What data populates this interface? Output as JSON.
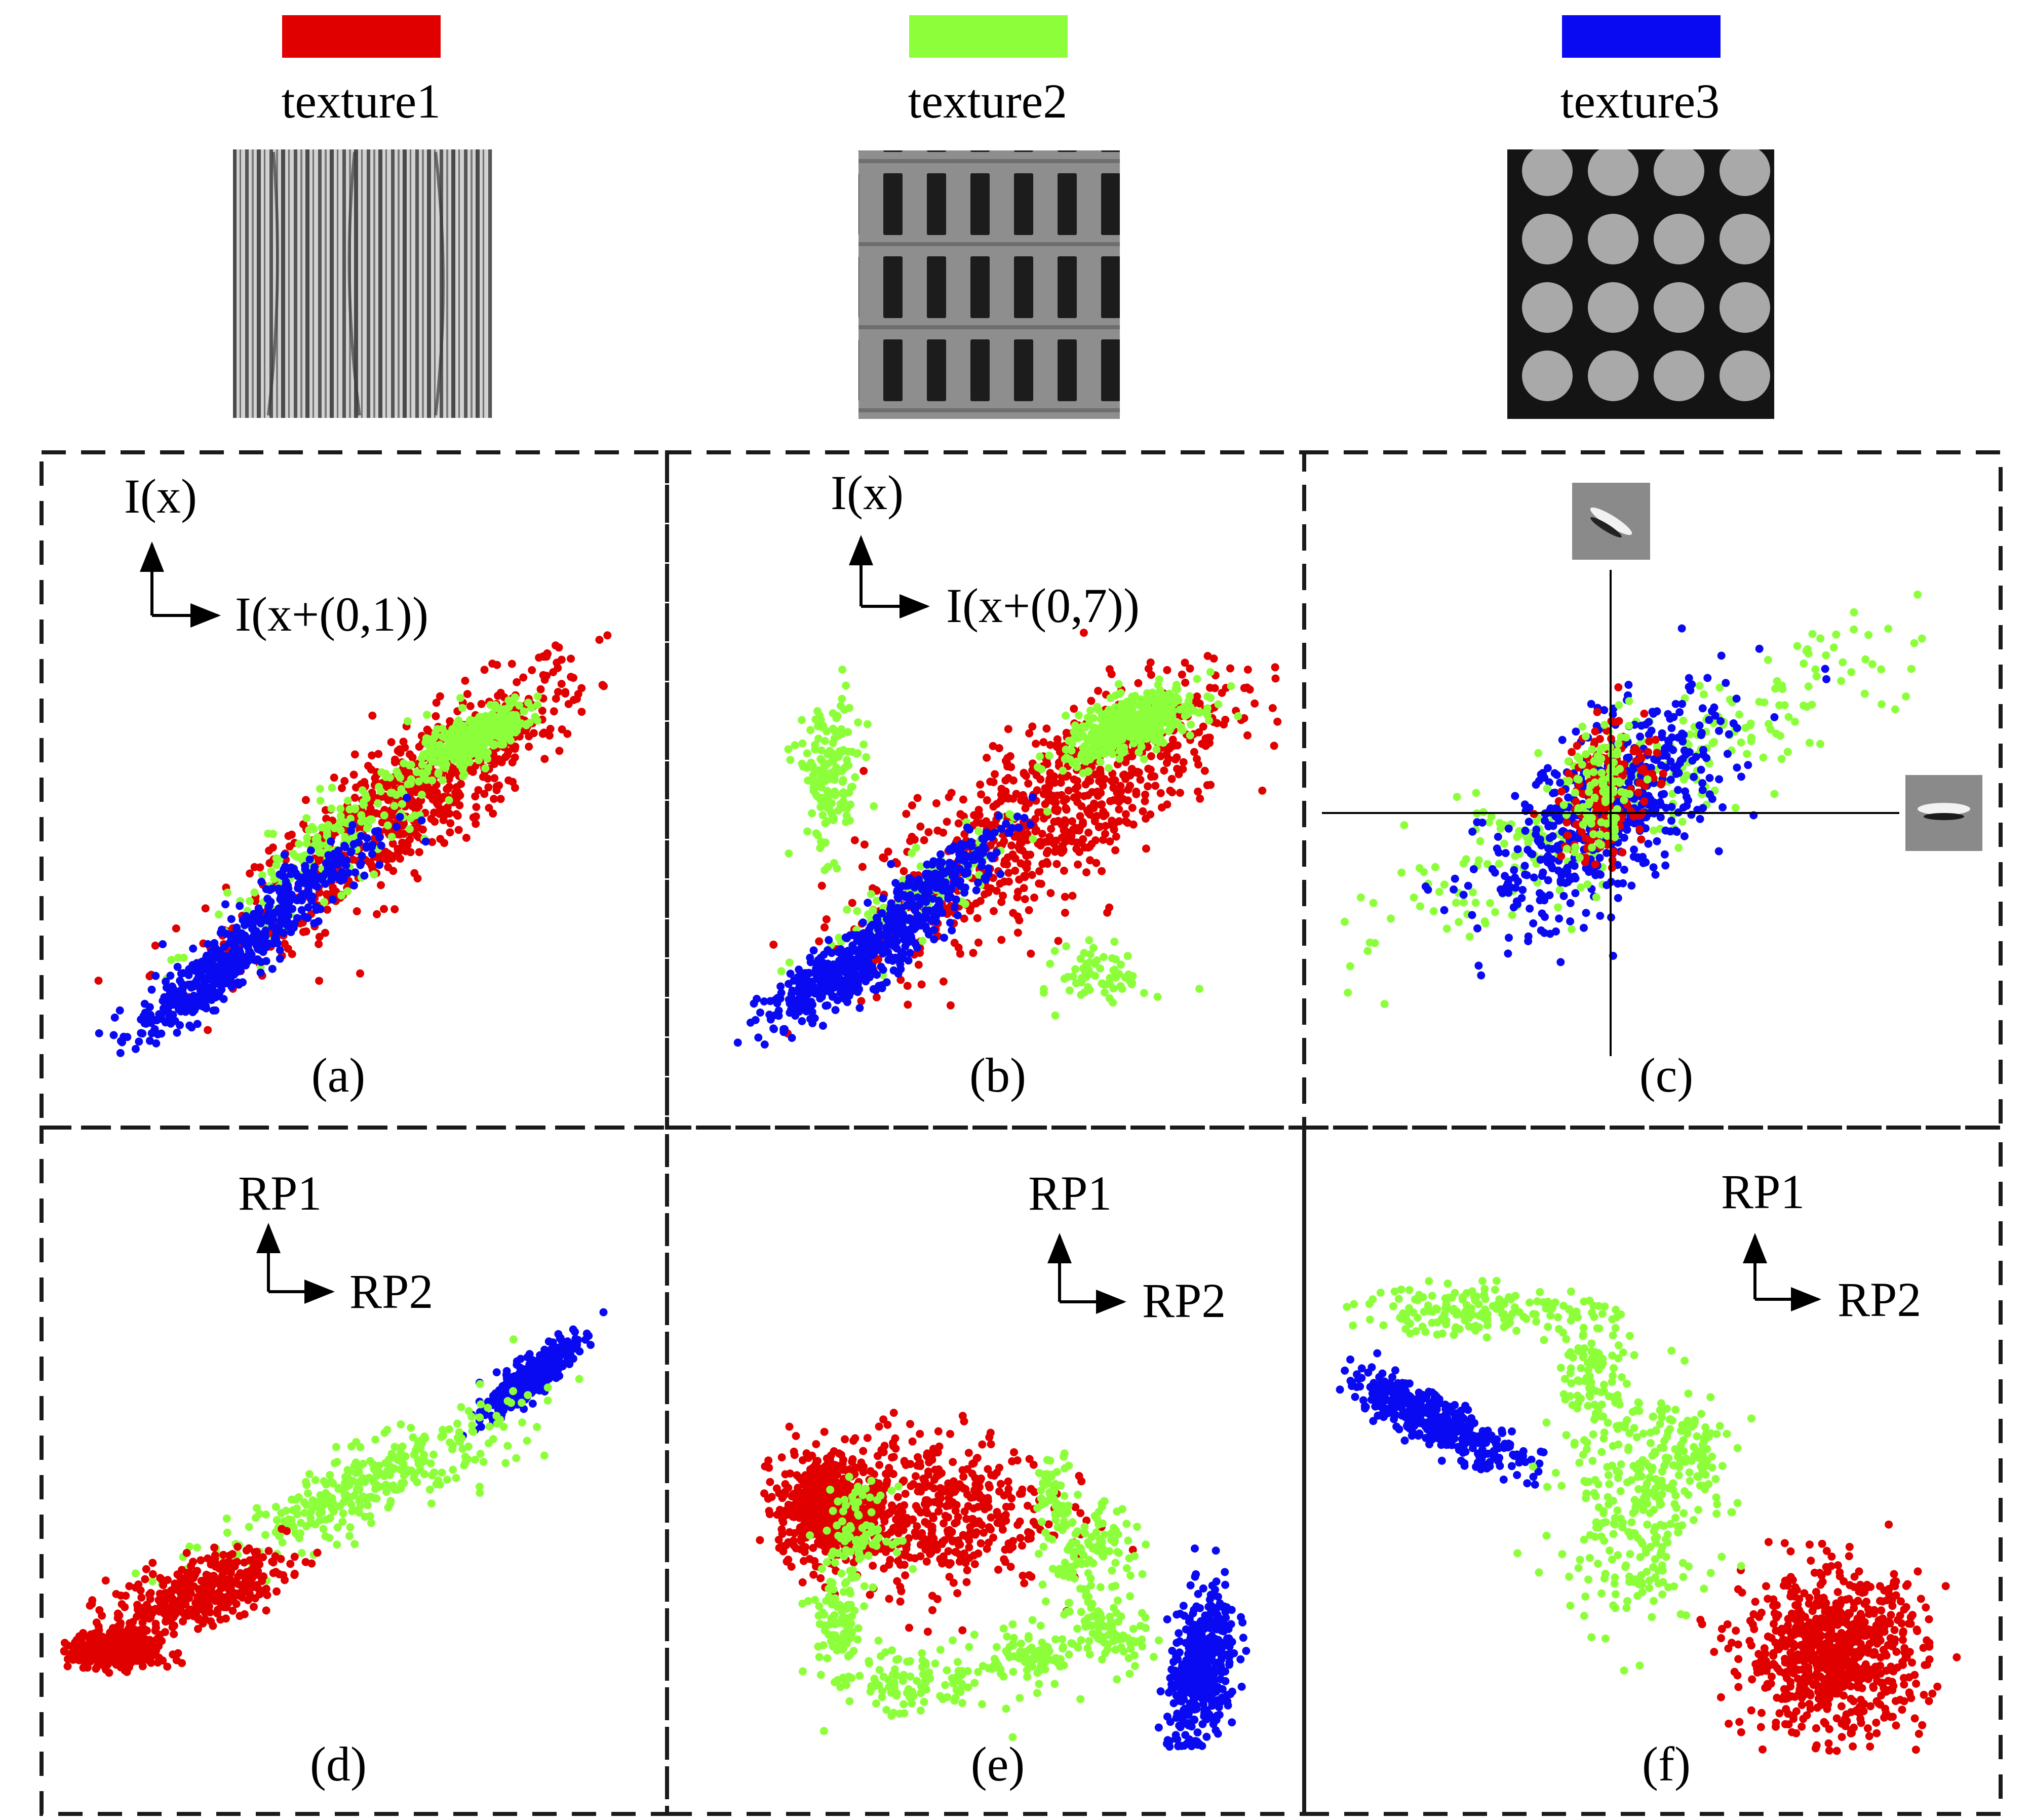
{
  "legend": [
    {
      "label": "texture1",
      "color": "#e00000",
      "icon": "stripe-texture-swatch"
    },
    {
      "label": "texture2",
      "color": "#8cff3a",
      "icon": "window-grid-texture-swatch"
    },
    {
      "label": "texture3",
      "color": "#0a0af2",
      "icon": "dot-lattice-texture-swatch"
    }
  ],
  "colors": {
    "texture1": "#e00000",
    "texture2": "#8cff3a",
    "texture3": "#0a0af2",
    "frame": "#1a1a1a"
  },
  "panels": [
    {
      "id": "a",
      "caption": "(a)",
      "y_axis_label": "I(x)",
      "x_axis_label": "I(x+(0,1))"
    },
    {
      "id": "b",
      "caption": "(b)",
      "y_axis_label": "I(x)",
      "x_axis_label": "I(x+(0,7))"
    },
    {
      "id": "c",
      "caption": "(c)",
      "y_axis_icon": "oblique-gabor-filter-icon",
      "x_axis_icon": "horizontal-gabor-filter-icon"
    },
    {
      "id": "d",
      "caption": "(d)",
      "y_axis_label": "RP1",
      "x_axis_label": "RP2"
    },
    {
      "id": "e",
      "caption": "(e)",
      "y_axis_label": "RP1",
      "x_axis_label": "RP2"
    },
    {
      "id": "f",
      "caption": "(f)",
      "y_axis_label": "RP1",
      "x_axis_label": "RP2"
    }
  ],
  "chart_data": [
    {
      "panel": "a",
      "type": "scatter",
      "clusters": [
        {
          "series": "texture1",
          "cx": 0.62,
          "cy": 0.6,
          "sx": 0.17,
          "sy": 0.17,
          "rho": 0.88,
          "n": 750
        },
        {
          "series": "texture2",
          "cx": 0.74,
          "cy": 0.75,
          "sx": 0.045,
          "sy": 0.035,
          "rho": 0.7,
          "n": 350
        },
        {
          "series": "texture2",
          "cx": 0.5,
          "cy": 0.52,
          "sx": 0.13,
          "sy": 0.13,
          "rho": 0.9,
          "n": 220
        },
        {
          "series": "texture3",
          "cx": 0.24,
          "cy": 0.18,
          "sx": 0.07,
          "sy": 0.07,
          "rho": 0.85,
          "n": 380
        },
        {
          "series": "texture3",
          "cx": 0.42,
          "cy": 0.4,
          "sx": 0.08,
          "sy": 0.08,
          "rho": 0.85,
          "n": 200
        }
      ]
    },
    {
      "panel": "b",
      "type": "scatter",
      "clusters": [
        {
          "series": "texture1",
          "cx": 0.58,
          "cy": 0.58,
          "sx": 0.17,
          "sy": 0.17,
          "rho": 0.8,
          "n": 800
        },
        {
          "series": "texture2",
          "cx": 0.73,
          "cy": 0.78,
          "sx": 0.06,
          "sy": 0.04,
          "rho": 0.6,
          "n": 420
        },
        {
          "series": "texture2",
          "cx": 0.18,
          "cy": 0.66,
          "sx": 0.03,
          "sy": 0.09,
          "rho": 0.0,
          "n": 160
        },
        {
          "series": "texture2",
          "cx": 0.68,
          "cy": 0.2,
          "sx": 0.04,
          "sy": 0.035,
          "rho": 0.0,
          "n": 70
        },
        {
          "series": "texture2",
          "cx": 0.32,
          "cy": 0.36,
          "sx": 0.1,
          "sy": 0.1,
          "rho": 0.9,
          "n": 130
        },
        {
          "series": "texture3",
          "cx": 0.22,
          "cy": 0.22,
          "sx": 0.08,
          "sy": 0.07,
          "rho": 0.85,
          "n": 420
        },
        {
          "series": "texture3",
          "cx": 0.38,
          "cy": 0.42,
          "sx": 0.07,
          "sy": 0.07,
          "rho": 0.85,
          "n": 200
        }
      ]
    },
    {
      "panel": "c",
      "type": "scatter",
      "clusters": [
        {
          "series": "texture2",
          "cx": 0.5,
          "cy": 0.5,
          "sx": 0.24,
          "sy": 0.2,
          "rho": 0.93,
          "n": 320
        },
        {
          "series": "texture3",
          "cx": 0.48,
          "cy": 0.46,
          "sx": 0.1,
          "sy": 0.13,
          "rho": 0.65,
          "n": 560
        },
        {
          "series": "texture1",
          "cx": 0.48,
          "cy": 0.52,
          "sx": 0.04,
          "sy": 0.09,
          "rho": 0.3,
          "n": 170
        },
        {
          "series": "texture2",
          "cx": 0.47,
          "cy": 0.5,
          "sx": 0.03,
          "sy": 0.08,
          "rho": 0.3,
          "n": 100
        }
      ]
    },
    {
      "panel": "d",
      "type": "scatter",
      "clusters": [
        {
          "series": "texture3",
          "cx": 0.86,
          "cy": 0.82,
          "sx": 0.04,
          "sy": 0.045,
          "rho": 0.85,
          "n": 420
        },
        {
          "series": "texture2",
          "cx": 0.56,
          "cy": 0.56,
          "sx": 0.14,
          "sy": 0.09,
          "rho": 0.85,
          "n": 330
        },
        {
          "series": "texture1",
          "cx": 0.25,
          "cy": 0.3,
          "sx": 0.08,
          "sy": 0.05,
          "rho": 0.6,
          "n": 360
        },
        {
          "series": "texture1",
          "cx": 0.1,
          "cy": 0.16,
          "sx": 0.04,
          "sy": 0.022,
          "rho": 0.0,
          "n": 420
        }
      ]
    },
    {
      "panel": "e",
      "type": "scatter",
      "clusters": [
        {
          "series": "texture1",
          "cx": 0.14,
          "cy": 0.67,
          "sx": 0.05,
          "sy": 0.07,
          "rho": 0.0,
          "n": 520
        },
        {
          "series": "texture1",
          "cx": 0.33,
          "cy": 0.66,
          "sx": 0.13,
          "sy": 0.11,
          "rho": 0.0,
          "n": 520
        },
        {
          "series": "texture3",
          "cx": 0.9,
          "cy": 0.21,
          "sx": 0.035,
          "sy": 0.12,
          "rho": 0.4,
          "n": 440
        },
        {
          "series": "texture2",
          "cx": 0.2,
          "cy": 0.6,
          "sx": 0.035,
          "sy": 0.06,
          "rho": 0.0,
          "n": 90
        },
        {
          "series": "texture2",
          "cx": 0.16,
          "cy": 0.35,
          "sx": 0.03,
          "sy": 0.07,
          "rho": 0.0,
          "n": 90
        },
        {
          "series": "texture2",
          "cx": 0.31,
          "cy": 0.18,
          "sx": 0.08,
          "sy": 0.05,
          "rho": 0.0,
          "n": 110
        },
        {
          "series": "texture2",
          "cx": 0.55,
          "cy": 0.25,
          "sx": 0.05,
          "sy": 0.04,
          "rho": 0.0,
          "n": 90
        },
        {
          "series": "texture2",
          "cx": 0.71,
          "cy": 0.31,
          "sx": 0.04,
          "sy": 0.05,
          "rho": 0.0,
          "n": 80
        },
        {
          "series": "texture2",
          "cx": 0.67,
          "cy": 0.53,
          "sx": 0.045,
          "sy": 0.07,
          "rho": 0.0,
          "n": 120
        },
        {
          "series": "texture2",
          "cx": 0.6,
          "cy": 0.72,
          "sx": 0.02,
          "sy": 0.05,
          "rho": 0.0,
          "n": 50
        }
      ]
    },
    {
      "panel": "f",
      "type": "scatter",
      "clusters": [
        {
          "series": "texture3",
          "cx": 0.15,
          "cy": 0.68,
          "sx": 0.07,
          "sy": 0.05,
          "rho": -0.85,
          "n": 440
        },
        {
          "series": "texture1",
          "cx": 0.78,
          "cy": 0.2,
          "sx": 0.07,
          "sy": 0.08,
          "rho": 0.0,
          "n": 820
        },
        {
          "series": "texture2",
          "cx": 0.22,
          "cy": 0.9,
          "sx": 0.1,
          "sy": 0.025,
          "rho": 0.0,
          "n": 170
        },
        {
          "series": "texture2",
          "cx": 0.4,
          "cy": 0.78,
          "sx": 0.025,
          "sy": 0.05,
          "rho": 0.0,
          "n": 80
        },
        {
          "series": "texture2",
          "cx": 0.47,
          "cy": 0.52,
          "sx": 0.06,
          "sy": 0.12,
          "rho": 0.0,
          "n": 300
        },
        {
          "series": "texture2",
          "cx": 0.55,
          "cy": 0.62,
          "sx": 0.03,
          "sy": 0.05,
          "rho": 0.0,
          "n": 60
        }
      ]
    }
  ]
}
